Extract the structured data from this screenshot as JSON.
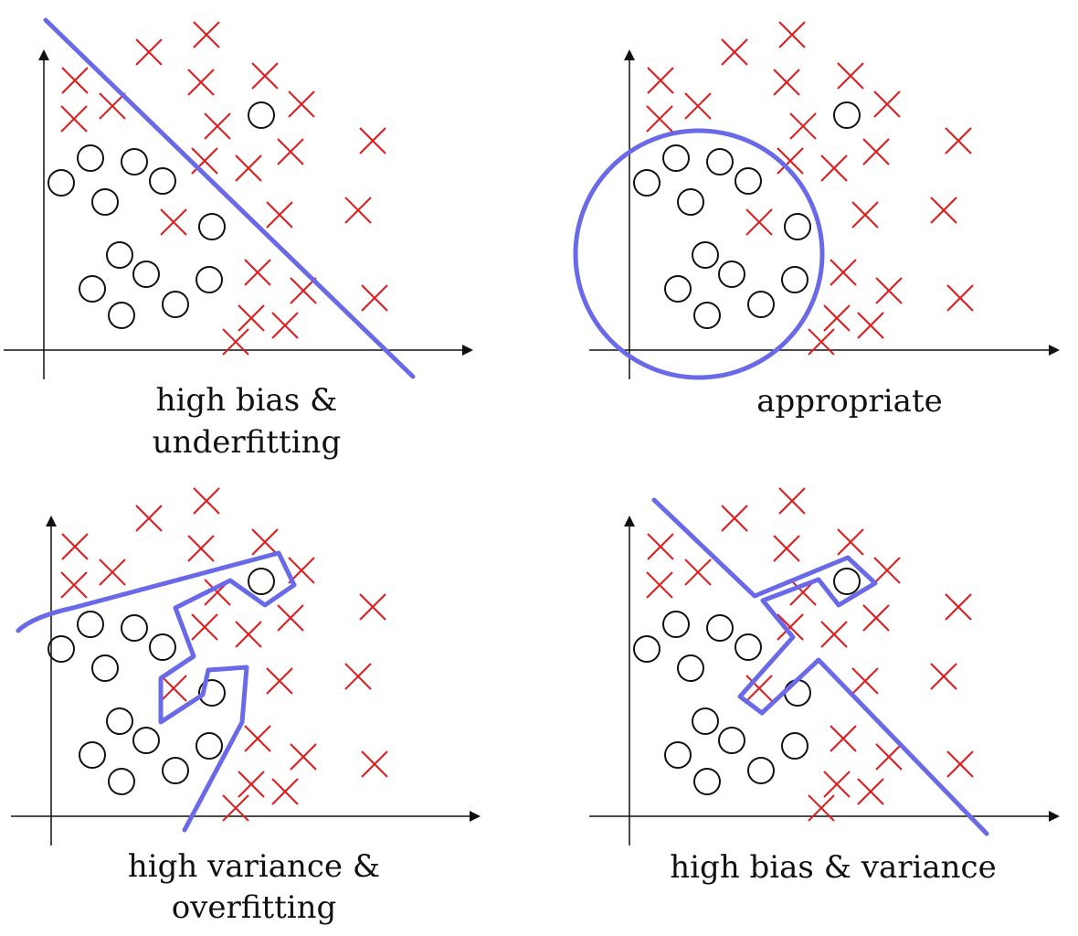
{
  "colors": {
    "background": "#ffffff",
    "boundary": "#6a6ae8",
    "cross": "#e21a1a",
    "circle": "#111111",
    "axis": "#111111"
  },
  "panels": [
    {
      "id": "underfit",
      "caption_lines": [
        "high bias &",
        "underfitting"
      ]
    },
    {
      "id": "appropriate",
      "caption_lines": [
        "appropriate"
      ]
    },
    {
      "id": "overfit",
      "caption_lines": [
        "high variance &",
        "overfitting"
      ]
    },
    {
      "id": "bias-variance",
      "caption_lines": [
        "high bias & variance"
      ]
    }
  ]
}
